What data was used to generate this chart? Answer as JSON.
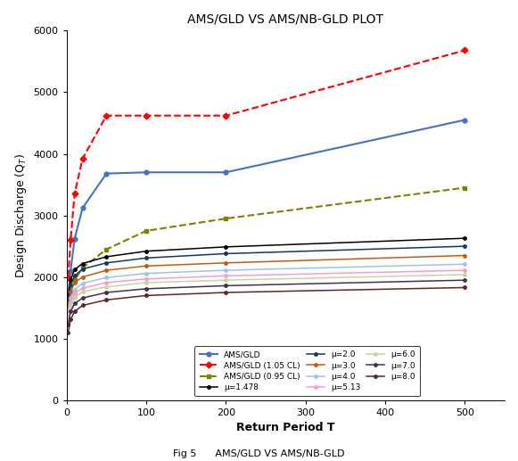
{
  "title": "AMS/GLD VS AMS/NB-GLD PLOT",
  "xlabel": "Return Period T",
  "caption": "Fig 5      AMS/GLD VS AMS/NB-GLD",
  "xlim": [
    0,
    550
  ],
  "ylim": [
    0,
    6000
  ],
  "xticks": [
    0,
    100,
    200,
    300,
    400,
    500
  ],
  "yticks": [
    0,
    1000,
    2000,
    3000,
    4000,
    5000,
    6000
  ],
  "T": [
    2,
    5,
    10,
    20,
    50,
    100,
    200,
    500
  ],
  "AMS_GLD": [
    1720,
    2100,
    2620,
    3120,
    3680,
    3700,
    3700,
    4550
  ],
  "AMS_GLD_105CL": [
    2000,
    2600,
    3350,
    3920,
    4620,
    4620,
    4620,
    5680
  ],
  "AMS_GLD_095CL": [
    1550,
    1750,
    1950,
    2150,
    2450,
    2750,
    2950,
    3450
  ],
  "mu_1478": [
    1680,
    1950,
    2120,
    2220,
    2330,
    2420,
    2490,
    2630
  ],
  "mu_2": [
    1620,
    1870,
    2020,
    2130,
    2230,
    2310,
    2380,
    2500
  ],
  "mu_3": [
    1530,
    1760,
    1910,
    2000,
    2110,
    2180,
    2230,
    2350
  ],
  "mu_4": [
    1440,
    1660,
    1800,
    1900,
    1990,
    2060,
    2110,
    2210
  ],
  "mu_513": [
    1380,
    1590,
    1730,
    1820,
    1910,
    1970,
    2020,
    2110
  ],
  "mu_6": [
    1320,
    1530,
    1660,
    1760,
    1840,
    1910,
    1950,
    2040
  ],
  "mu_7": [
    1230,
    1440,
    1570,
    1660,
    1750,
    1810,
    1860,
    1950
  ],
  "mu_8": [
    1100,
    1310,
    1440,
    1540,
    1630,
    1700,
    1750,
    1830
  ],
  "colors": {
    "AMS_GLD": "#4472C4",
    "AMS_GLD_105CL": "#FF0000",
    "AMS_GLD_095CL": "#808000",
    "mu_1478": "#000000",
    "mu_2": "#17375E",
    "mu_3": "#C55A11",
    "mu_4": "#9DC3E6",
    "mu_513": "#FF99CC",
    "mu_6": "#C4D79B",
    "mu_7": "#403152",
    "mu_8": "#632523"
  },
  "legend_labels": {
    "AMS_GLD": "AMS/GLD",
    "AMS_GLD_105CL": "AMS/GLD (1.05 CL)",
    "AMS_GLD_095CL": "AMS/GLD (0.95 CL)",
    "mu_1478": "μ=1.478",
    "mu_2": "μ=2.0",
    "mu_3": "μ=3.0",
    "mu_4": "μ=4.0",
    "mu_513": "μ=5.13",
    "mu_6": "μ=6.0",
    "mu_7": "μ=7.0",
    "mu_8": "μ=8.0"
  }
}
